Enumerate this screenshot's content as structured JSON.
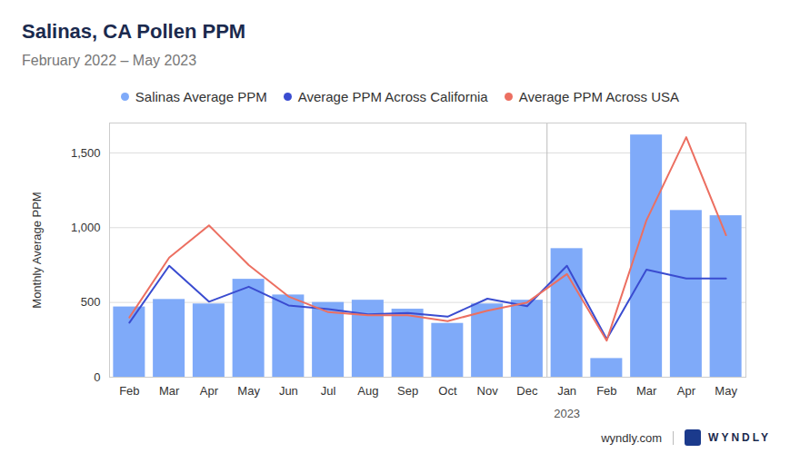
{
  "chart_data": {
    "type": "bar",
    "title": "Salinas, CA Pollen PPM",
    "subtitle": "February 2022 – May 2023",
    "y_label": "Monthly Average PPM",
    "categories": [
      "Feb",
      "Mar",
      "Apr",
      "May",
      "Jun",
      "Jul",
      "Aug",
      "Sep",
      "Oct",
      "Nov",
      "Dec",
      "Jan",
      "Feb",
      "Mar",
      "Apr",
      "May"
    ],
    "series": [
      {
        "name": "Salinas Average PPM",
        "type": "bar",
        "color": "#7faaf9",
        "values": [
          470,
          520,
          490,
          655,
          550,
          500,
          515,
          455,
          360,
          490,
          515,
          860,
          125,
          1620,
          1115,
          1080
        ]
      },
      {
        "name": "Average PPM Across California",
        "type": "line",
        "color": "#3a4cd0",
        "values": [
          365,
          745,
          505,
          605,
          480,
          455,
          420,
          430,
          405,
          525,
          475,
          745,
          255,
          720,
          660,
          660
        ]
      },
      {
        "name": "Average PPM Across USA",
        "type": "line",
        "color": "#ec6f61",
        "values": [
          400,
          800,
          1015,
          750,
          540,
          435,
          415,
          415,
          375,
          445,
          500,
          690,
          245,
          1050,
          1605,
          950
        ]
      }
    ],
    "ylim": [
      0,
      1700
    ],
    "yticks": [
      0,
      500,
      {
        "value": 1000,
        "label": "1,000"
      },
      {
        "value": 1500,
        "label": "1,500"
      }
    ],
    "grid": true,
    "legend": "top",
    "annotations": [
      {
        "text": "2023",
        "category_index": 11
      }
    ],
    "source": "wyndly.com",
    "logo": "WYNDLY"
  }
}
